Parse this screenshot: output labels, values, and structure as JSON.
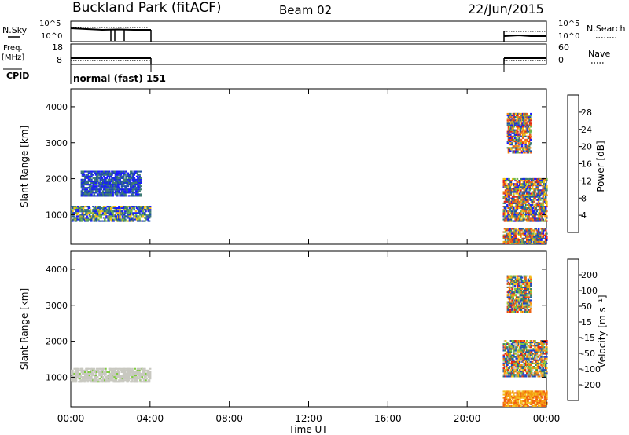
{
  "header": {
    "title": "Buckland Park (fitACF)",
    "beam": "Beam 02",
    "date": "22/Jun/2015"
  },
  "top_panels": {
    "nsky_label": "N.Sky",
    "nsearch_label": "N.Search",
    "n_ticks_left": [
      "10^5",
      "10^0"
    ],
    "n_ticks_right": [
      "10^5",
      "10^0"
    ],
    "freq_label": "Freq.",
    "freq_unit": "[MHz]",
    "freq_ticks": [
      "18",
      "8"
    ],
    "nave_label": "Nave",
    "nave_ticks": [
      "60",
      "0"
    ],
    "cpid_label": "CPID",
    "cpid_value": "normal (fast) 151"
  },
  "chart_data": [
    {
      "type": "heatmap",
      "name": "power",
      "ylabel": "Slant Range [km]",
      "xlabel": "",
      "xlim": [
        0,
        24
      ],
      "ylim": [
        180,
        4500
      ],
      "yticks": [
        "1000",
        "2000",
        "3000",
        "4000"
      ],
      "grid": false,
      "colorbar": {
        "label": "Power [dB]",
        "ticks": [
          "28",
          "24",
          "20",
          "16",
          "12",
          "8",
          "4"
        ],
        "colors": [
          "#1a1aff",
          "#1e4fa8",
          "#3c7a74",
          "#6db84b",
          "#f2c012",
          "#f08a10",
          "#e8601c",
          "#e52a17"
        ]
      },
      "data_blocks": [
        {
          "t_start": 0.0,
          "t_end": 4.0,
          "range": [
            800,
            1250
          ],
          "level": "mid"
        },
        {
          "t_start": 0.5,
          "t_end": 3.5,
          "range": [
            1500,
            2200
          ],
          "level": "low"
        },
        {
          "t_start": 21.8,
          "t_end": 24.0,
          "range": [
            800,
            2000
          ],
          "level": "high"
        },
        {
          "t_start": 22.0,
          "t_end": 23.2,
          "range": [
            2700,
            3800
          ],
          "level": "high"
        },
        {
          "t_start": 21.8,
          "t_end": 24.0,
          "range": [
            180,
            600
          ],
          "level": "high"
        }
      ]
    },
    {
      "type": "heatmap",
      "name": "velocity",
      "ylabel": "Slant Range [km]",
      "xlabel": "Time UT",
      "xlim": [
        0,
        24
      ],
      "ylim": [
        180,
        4500
      ],
      "yticks": [
        "1000",
        "2000",
        "3000",
        "4000"
      ],
      "xticks": [
        "00:00",
        "04:00",
        "08:00",
        "12:00",
        "16:00",
        "20:00",
        "00:00"
      ],
      "grid": false,
      "colorbar": {
        "label": "Velocity [m s⁻¹]",
        "ticks": [
          "200",
          "100",
          "50",
          "15",
          "-15",
          "-50",
          "-100",
          "-200"
        ],
        "colors": [
          "#1e3fd0",
          "#1f5fa0",
          "#3a8a5a",
          "#7ecb3f",
          "#c8c8c0",
          "#f5c020",
          "#f59a10",
          "#f06010",
          "#e82010"
        ]
      },
      "data_blocks": [
        {
          "t_start": 0.0,
          "t_end": 4.0,
          "range": [
            850,
            1250
          ],
          "level": "ground"
        },
        {
          "t_start": 21.8,
          "t_end": 24.0,
          "range": [
            1000,
            2000
          ],
          "level": "mixed"
        },
        {
          "t_start": 22.0,
          "t_end": 23.2,
          "range": [
            2800,
            3800
          ],
          "level": "mixed"
        },
        {
          "t_start": 21.8,
          "t_end": 24.0,
          "range": [
            180,
            600
          ],
          "level": "neg"
        }
      ]
    }
  ]
}
